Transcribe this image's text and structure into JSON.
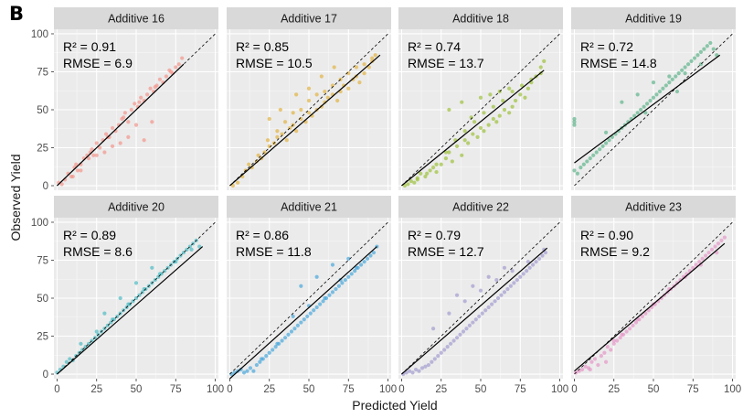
{
  "panel_label": "B",
  "xlabel": "Predicted Yield",
  "ylabel": "Observed Yield",
  "x_ticks": [
    "0",
    "25",
    "50",
    "75",
    "100"
  ],
  "y_ticks": [
    "0",
    "25",
    "50",
    "75",
    "100"
  ],
  "colors": {
    "panel_background": "#ebebeb",
    "strip_background": "#d9d9d9",
    "grid_major": "#ffffff",
    "fit_line": "#000000",
    "identity_line": "#000000"
  },
  "chart_data": [
    {
      "type": "scatter",
      "title": "Additive 16",
      "color": "#f4968c",
      "r2_label": "R² = 0.91",
      "rmse_label": "RMSE = 6.9",
      "xlim": [
        -2,
        102
      ],
      "ylim": [
        -3,
        103
      ],
      "fit": {
        "x": [
          0,
          80
        ],
        "y": [
          0,
          80
        ]
      },
      "identity": {
        "x": [
          0,
          100
        ],
        "y": [
          0,
          100
        ]
      },
      "points": {
        "x": [
          1,
          3,
          5,
          7,
          9,
          11,
          13,
          15,
          17,
          19,
          21,
          23,
          25,
          27,
          29,
          31,
          33,
          35,
          37,
          39,
          41,
          43,
          45,
          47,
          49,
          51,
          53,
          55,
          57,
          59,
          61,
          63,
          65,
          67,
          69,
          71,
          73,
          75,
          77,
          79,
          10,
          15,
          20,
          25,
          30,
          35,
          40,
          45,
          50,
          55,
          60,
          12,
          22,
          32,
          42,
          52,
          62,
          72
        ],
        "y": [
          2,
          1,
          4,
          8,
          6,
          12,
          10,
          14,
          18,
          20,
          22,
          20,
          28,
          25,
          30,
          34,
          32,
          38,
          36,
          40,
          44,
          48,
          42,
          50,
          54,
          52,
          58,
          56,
          60,
          64,
          62,
          66,
          70,
          68,
          72,
          76,
          74,
          78,
          80,
          84,
          6,
          10,
          18,
          20,
          22,
          26,
          28,
          32,
          40,
          30,
          42,
          14,
          24,
          32,
          45,
          55,
          65,
          75
        ]
      }
    },
    {
      "type": "scatter",
      "title": "Additive 17",
      "color": "#e3b442",
      "r2_label": "R² = 0.85",
      "rmse_label": "RMSE = 10.5",
      "xlim": [
        -2,
        102
      ],
      "ylim": [
        -3,
        103
      ],
      "fit": {
        "x": [
          0,
          95
        ],
        "y": [
          0,
          86
        ]
      },
      "identity": {
        "x": [
          0,
          100
        ],
        "y": [
          0,
          100
        ]
      },
      "points": {
        "x": [
          2,
          5,
          8,
          10,
          14,
          17,
          20,
          22,
          25,
          28,
          30,
          33,
          36,
          38,
          40,
          42,
          45,
          48,
          50,
          52,
          55,
          58,
          60,
          62,
          65,
          68,
          70,
          72,
          75,
          78,
          80,
          82,
          85,
          88,
          90,
          92,
          12,
          18,
          24,
          30,
          35,
          40,
          45,
          50,
          55,
          60,
          65,
          70,
          75,
          80,
          85,
          90,
          25,
          32,
          42,
          50,
          58,
          66
        ],
        "y": [
          0,
          2,
          6,
          10,
          12,
          16,
          18,
          22,
          26,
          28,
          32,
          34,
          30,
          38,
          40,
          36,
          44,
          42,
          48,
          46,
          50,
          52,
          55,
          58,
          60,
          56,
          62,
          66,
          64,
          70,
          72,
          68,
          74,
          78,
          82,
          86,
          14,
          20,
          30,
          36,
          42,
          48,
          50,
          56,
          60,
          62,
          66,
          70,
          74,
          78,
          80,
          84,
          44,
          50,
          60,
          64,
          72,
          78
        ]
      }
    },
    {
      "type": "scatter",
      "title": "Additive 18",
      "color": "#9ec23c",
      "r2_label": "R² = 0.74",
      "rmse_label": "RMSE = 13.7",
      "xlim": [
        -2,
        102
      ],
      "ylim": [
        -3,
        103
      ],
      "fit": {
        "x": [
          0,
          90
        ],
        "y": [
          0,
          76
        ]
      },
      "identity": {
        "x": [
          0,
          100
        ],
        "y": [
          0,
          100
        ]
      },
      "points": {
        "x": [
          2,
          4,
          6,
          8,
          10,
          12,
          15,
          18,
          20,
          22,
          25,
          28,
          30,
          32,
          35,
          38,
          40,
          42,
          45,
          48,
          50,
          52,
          55,
          58,
          60,
          62,
          65,
          68,
          70,
          72,
          75,
          78,
          80,
          82,
          85,
          88,
          90,
          10,
          16,
          22,
          28,
          34,
          40,
          46,
          52,
          58,
          64,
          70,
          76,
          82,
          88,
          30,
          38,
          44,
          50,
          56,
          62,
          68
        ],
        "y": [
          0,
          1,
          3,
          2,
          5,
          8,
          6,
          10,
          12,
          9,
          14,
          18,
          22,
          16,
          26,
          20,
          30,
          28,
          34,
          32,
          38,
          36,
          40,
          44,
          42,
          46,
          50,
          48,
          52,
          56,
          60,
          58,
          64,
          68,
          72,
          78,
          82,
          4,
          8,
          14,
          22,
          30,
          36,
          42,
          48,
          52,
          56,
          62,
          66,
          70,
          74,
          50,
          55,
          45,
          58,
          60,
          62,
          64
        ]
      }
    },
    {
      "type": "scatter",
      "title": "Additive 19",
      "color": "#5fb58c",
      "r2_label": "R² = 0.72",
      "rmse_label": "RMSE = 14.8",
      "xlim": [
        -2,
        102
      ],
      "ylim": [
        -3,
        103
      ],
      "fit": {
        "x": [
          0,
          92
        ],
        "y": [
          15,
          86
        ]
      },
      "identity": {
        "x": [
          0,
          100
        ],
        "y": [
          0,
          100
        ]
      },
      "points": {
        "x": [
          0,
          0,
          0,
          0,
          2,
          4,
          6,
          8,
          10,
          12,
          14,
          16,
          18,
          20,
          22,
          24,
          26,
          28,
          30,
          32,
          34,
          36,
          38,
          40,
          42,
          44,
          46,
          48,
          50,
          52,
          54,
          56,
          58,
          60,
          62,
          64,
          66,
          68,
          70,
          72,
          74,
          76,
          78,
          80,
          82,
          84,
          86,
          88,
          90,
          30,
          40,
          50,
          60,
          70,
          80,
          20,
          45,
          65
        ],
        "y": [
          40,
          42,
          44,
          10,
          8,
          12,
          14,
          16,
          18,
          20,
          22,
          24,
          26,
          28,
          30,
          32,
          34,
          36,
          38,
          40,
          42,
          44,
          46,
          48,
          50,
          52,
          54,
          56,
          58,
          60,
          62,
          64,
          66,
          68,
          70,
          72,
          74,
          76,
          78,
          80,
          82,
          84,
          86,
          88,
          90,
          92,
          94,
          90,
          86,
          55,
          60,
          68,
          72,
          74,
          80,
          35,
          48,
          62
        ]
      }
    },
    {
      "type": "scatter",
      "title": "Additive 20",
      "color": "#4fbcc4",
      "r2_label": "R² = 0.89",
      "rmse_label": "RMSE = 8.6",
      "xlim": [
        -2,
        102
      ],
      "ylim": [
        -3,
        103
      ],
      "fit": {
        "x": [
          0,
          92
        ],
        "y": [
          0,
          84
        ]
      },
      "identity": {
        "x": [
          0,
          100
        ],
        "y": [
          0,
          100
        ]
      },
      "points": {
        "x": [
          0,
          2,
          4,
          6,
          8,
          10,
          12,
          14,
          16,
          18,
          20,
          22,
          24,
          26,
          28,
          30,
          32,
          34,
          36,
          38,
          40,
          42,
          44,
          46,
          48,
          50,
          52,
          54,
          56,
          58,
          60,
          62,
          64,
          66,
          68,
          70,
          72,
          74,
          76,
          78,
          80,
          82,
          84,
          86,
          88,
          90,
          15,
          25,
          35,
          45,
          55,
          65,
          75,
          85,
          30,
          40,
          50,
          60
        ],
        "y": [
          1,
          3,
          5,
          8,
          10,
          9,
          12,
          14,
          16,
          18,
          20,
          22,
          24,
          26,
          28,
          30,
          32,
          34,
          36,
          38,
          40,
          42,
          44,
          46,
          48,
          50,
          52,
          54,
          56,
          58,
          60,
          62,
          64,
          66,
          68,
          70,
          72,
          74,
          76,
          78,
          80,
          82,
          84,
          86,
          88,
          84,
          20,
          28,
          36,
          46,
          56,
          66,
          74,
          82,
          40,
          50,
          60,
          70
        ]
      }
    },
    {
      "type": "scatter",
      "title": "Additive 21",
      "color": "#4aa8dc",
      "r2_label": "R² = 0.86",
      "rmse_label": "RMSE = 11.8",
      "xlim": [
        -2,
        102
      ],
      "ylim": [
        -3,
        103
      ],
      "fit": {
        "x": [
          0,
          93
        ],
        "y": [
          -3,
          84
        ]
      },
      "identity": {
        "x": [
          0,
          100
        ],
        "y": [
          0,
          100
        ]
      },
      "points": {
        "x": [
          1,
          3,
          5,
          7,
          9,
          11,
          13,
          15,
          17,
          19,
          21,
          23,
          25,
          27,
          29,
          31,
          33,
          35,
          37,
          39,
          41,
          43,
          45,
          47,
          49,
          51,
          53,
          55,
          57,
          59,
          61,
          63,
          65,
          67,
          69,
          71,
          73,
          75,
          77,
          79,
          81,
          83,
          85,
          87,
          89,
          91,
          93,
          20,
          30,
          40,
          50,
          60,
          70,
          80,
          45,
          55,
          65,
          75
        ],
        "y": [
          0,
          1,
          2,
          3,
          1,
          2,
          4,
          2,
          6,
          8,
          10,
          12,
          14,
          16,
          18,
          20,
          22,
          24,
          26,
          28,
          30,
          32,
          34,
          36,
          38,
          40,
          42,
          44,
          46,
          48,
          50,
          52,
          54,
          56,
          58,
          60,
          62,
          64,
          66,
          68,
          70,
          72,
          74,
          76,
          78,
          80,
          84,
          10,
          20,
          38,
          45,
          50,
          62,
          70,
          58,
          64,
          72,
          76
        ]
      }
    },
    {
      "type": "scatter",
      "title": "Additive 22",
      "color": "#a39cd0",
      "r2_label": "R² = 0.79",
      "rmse_label": "RMSE = 12.7",
      "xlim": [
        -2,
        102
      ],
      "ylim": [
        -3,
        103
      ],
      "fit": {
        "x": [
          0,
          92
        ],
        "y": [
          0,
          83
        ]
      },
      "identity": {
        "x": [
          0,
          100
        ],
        "y": [
          0,
          100
        ]
      },
      "points": {
        "x": [
          1,
          3,
          5,
          7,
          9,
          11,
          13,
          15,
          17,
          19,
          21,
          23,
          25,
          27,
          29,
          31,
          33,
          35,
          37,
          39,
          41,
          43,
          45,
          47,
          49,
          51,
          53,
          55,
          57,
          59,
          61,
          63,
          65,
          67,
          69,
          71,
          73,
          75,
          77,
          79,
          81,
          83,
          85,
          87,
          89,
          91,
          20,
          30,
          40,
          50,
          60,
          70,
          80,
          90,
          35,
          45,
          55,
          65
        ],
        "y": [
          0,
          1,
          2,
          1,
          3,
          2,
          4,
          5,
          6,
          8,
          10,
          12,
          14,
          16,
          18,
          20,
          22,
          24,
          26,
          28,
          30,
          32,
          34,
          36,
          38,
          40,
          42,
          44,
          46,
          48,
          50,
          52,
          54,
          56,
          58,
          60,
          62,
          64,
          66,
          68,
          70,
          72,
          74,
          76,
          78,
          80,
          30,
          40,
          48,
          55,
          62,
          68,
          74,
          82,
          52,
          58,
          64,
          70
        ]
      }
    },
    {
      "type": "scatter",
      "title": "Additive 23",
      "color": "#e597c8",
      "r2_label": "R² = 0.90",
      "rmse_label": "RMSE = 9.2",
      "xlim": [
        -2,
        102
      ],
      "ylim": [
        -3,
        103
      ],
      "fit": {
        "x": [
          0,
          95
        ],
        "y": [
          2,
          86
        ]
      },
      "identity": {
        "x": [
          0,
          100
        ],
        "y": [
          0,
          100
        ]
      },
      "points": {
        "x": [
          1,
          3,
          5,
          7,
          9,
          11,
          13,
          15,
          17,
          19,
          21,
          23,
          25,
          27,
          29,
          31,
          33,
          35,
          37,
          39,
          41,
          43,
          45,
          47,
          49,
          51,
          53,
          55,
          57,
          59,
          61,
          63,
          65,
          67,
          69,
          71,
          73,
          75,
          77,
          79,
          81,
          83,
          85,
          87,
          89,
          91,
          93,
          95,
          10,
          20,
          30,
          40,
          50,
          60,
          70,
          80,
          90,
          25
        ],
        "y": [
          1,
          2,
          3,
          5,
          4,
          8,
          10,
          6,
          12,
          14,
          18,
          16,
          20,
          22,
          24,
          26,
          28,
          30,
          32,
          34,
          36,
          38,
          40,
          42,
          44,
          46,
          48,
          50,
          52,
          54,
          56,
          58,
          60,
          62,
          64,
          66,
          68,
          70,
          72,
          74,
          76,
          78,
          80,
          82,
          84,
          86,
          88,
          90,
          3,
          8,
          26,
          36,
          46,
          56,
          64,
          72,
          80,
          22
        ]
      }
    }
  ]
}
